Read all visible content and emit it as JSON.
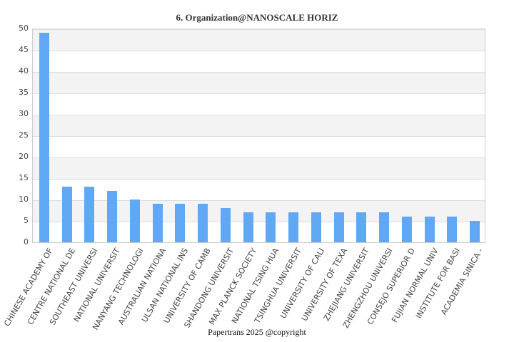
{
  "chart_data": {
    "type": "bar",
    "title": "6. Organization@NANOSCALE HORIZ",
    "xlabel": "",
    "ylabel": "",
    "ylim": [
      0,
      50
    ],
    "yticks": [
      0,
      5,
      10,
      15,
      20,
      25,
      30,
      35,
      40,
      45,
      50
    ],
    "grid": true,
    "legend": null,
    "bar_color": "#61a8f4",
    "categories": [
      "CHINESE ACADEMY OF",
      "CENTRE NATIONAL DE",
      "SOUTHEAST UNIVERSI",
      "NATIONAL UNIVERSIT",
      "NANYANG TECHNOLOGI",
      "AUSTRALIAN NATIONA",
      "ULSAN NATIONAL INS",
      "UNIVERSITY OF CAMB",
      "SHANDONG UNIVERSIT",
      "MAX PLANCK SOCIETY",
      "NATIONAL TSING HUA",
      "TSINGHUA UNIVERSIT",
      "UNIVERSITY OF CALI",
      "UNIVERSITY OF TEXA",
      "ZHEJIANG UNIVERSIT",
      "ZHENGZHOU UNIVERSI",
      "CONSEJO SUPERIOR D",
      "FUJIAN NORMAL UNIV",
      "INSTITUTE FOR BASI",
      "ACADEMIA SINICA -"
    ],
    "values": [
      49,
      13,
      13,
      12,
      10,
      9,
      9,
      9,
      8,
      7,
      7,
      7,
      7,
      7,
      7,
      7,
      6,
      6,
      6,
      5
    ]
  },
  "footer": "Papertrans 2025 @copyright"
}
